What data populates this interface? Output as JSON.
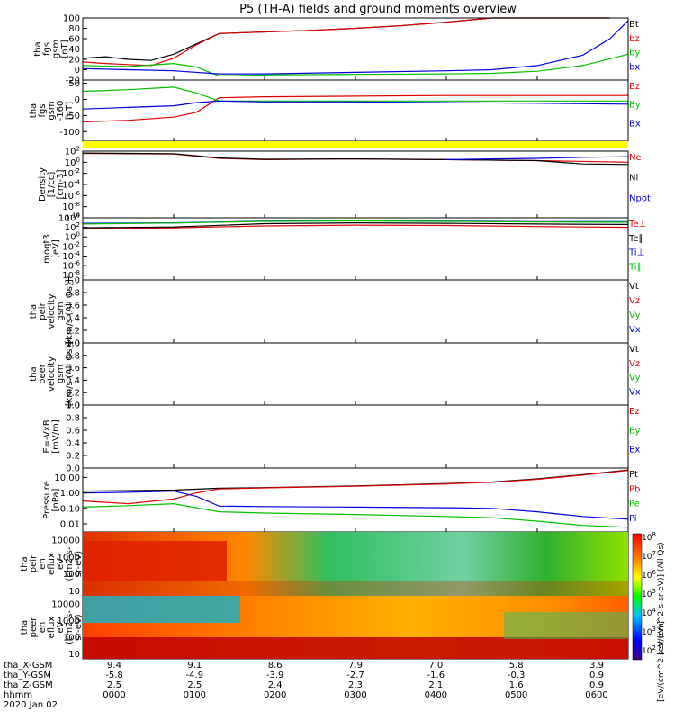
{
  "title": "P5 (TH-A) fields and ground moments overview",
  "colors": {
    "black": "#000000",
    "red": "#e00000",
    "green": "#00c000",
    "blue": "#0000e0",
    "yellow": "#ffff00"
  },
  "chart_data": [
    {
      "type": "line",
      "panel": "fgs",
      "ylabel": [
        "tha",
        "fgs",
        "gsm",
        "[nT]"
      ],
      "yticks": [
        "100",
        "80",
        "60",
        "40",
        "20",
        "0",
        "-20"
      ],
      "ylim": [
        -20,
        100
      ],
      "legend": [
        {
          "text": "Bt",
          "color": "#000000"
        },
        {
          "text": "bz",
          "color": "#e00000"
        },
        {
          "text": "by",
          "color": "#00c000"
        },
        {
          "text": "bx",
          "color": "#0000e0"
        }
      ],
      "series": [
        {
          "name": "Bt",
          "color": "#000000",
          "x": [
            0,
            0.25,
            0.5,
            0.75,
            1.0,
            1.25,
            1.5,
            2,
            2.5,
            3,
            3.5,
            4,
            4.5,
            5,
            5.5,
            5.8
          ],
          "y": [
            22,
            25,
            20,
            18,
            30,
            50,
            70,
            73,
            76,
            80,
            85,
            92,
            100,
            100,
            100,
            100
          ]
        },
        {
          "name": "bz",
          "color": "#e00000",
          "x": [
            0,
            0.25,
            0.5,
            0.75,
            1.0,
            1.25,
            1.5,
            2,
            2.5,
            3,
            3.5,
            4,
            4.5,
            5,
            5.5,
            5.8
          ],
          "y": [
            15,
            12,
            10,
            8,
            22,
            48,
            70,
            73,
            76,
            80,
            85,
            92,
            100,
            100,
            100,
            100
          ]
        },
        {
          "name": "by",
          "color": "#00c000",
          "x": [
            0,
            0.5,
            1.0,
            1.25,
            1.5,
            2,
            3,
            4,
            4.5,
            5,
            5.5,
            6
          ],
          "y": [
            8,
            6,
            12,
            5,
            -12,
            -10,
            -9,
            -8,
            -7,
            -3,
            8,
            30
          ]
        },
        {
          "name": "bx",
          "color": "#0000e0",
          "x": [
            0,
            0.5,
            1.0,
            1.5,
            2,
            3,
            4,
            4.5,
            5,
            5.5,
            5.8,
            6
          ],
          "y": [
            2,
            0,
            -2,
            -8,
            -8,
            -5,
            -2,
            0,
            8,
            28,
            60,
            95
          ]
        }
      ]
    },
    {
      "type": "line",
      "panel": "fgs-offset",
      "ylabel": [
        "tha",
        "fgs",
        "gsm",
        "-160",
        "[nT]"
      ],
      "yticks": [
        "50",
        "0",
        "-50",
        "-100"
      ],
      "ylim": [
        -130,
        60
      ],
      "legend": [
        {
          "text": "Bz",
          "color": "#e00000"
        },
        {
          "text": "By",
          "color": "#00c000"
        },
        {
          "text": "Bx",
          "color": "#0000e0"
        }
      ],
      "series": [
        {
          "name": "Bz",
          "color": "#e00000",
          "x": [
            0,
            0.5,
            1.0,
            1.25,
            1.5,
            2,
            3,
            4,
            5,
            6
          ],
          "y": [
            -70,
            -65,
            -55,
            -40,
            5,
            8,
            10,
            12,
            12,
            12
          ]
        },
        {
          "name": "By",
          "color": "#00c000",
          "x": [
            0,
            0.5,
            1.0,
            1.25,
            1.5,
            2,
            3,
            4,
            5,
            6
          ],
          "y": [
            25,
            30,
            38,
            20,
            -5,
            -5,
            -5,
            -5,
            -5,
            -5
          ]
        },
        {
          "name": "Bx",
          "color": "#0000e0",
          "x": [
            0,
            0.5,
            1.0,
            1.25,
            1.5,
            2,
            3,
            4,
            5,
            6
          ],
          "y": [
            -30,
            -25,
            -20,
            -10,
            -5,
            -8,
            -8,
            -10,
            -12,
            -15
          ]
        }
      ]
    },
    {
      "type": "line",
      "panel": "density",
      "ylabel": [
        "Density",
        "[1/cc]",
        "[cm-3]"
      ],
      "yticks": [
        "10^2",
        "10^0",
        "10^-2",
        "10^-4",
        "10^-6",
        "10^-8",
        "10^-10"
      ],
      "ylim": [
        1e-10,
        100
      ],
      "yscale": "log",
      "legend": [
        {
          "text": "Ne",
          "color": "#e00000"
        },
        {
          "text": "Ni",
          "color": "#000000"
        },
        {
          "text": "Npot",
          "color": "#0000e0"
        }
      ],
      "series": [
        {
          "name": "Ne",
          "color": "#e00000",
          "x": [
            0,
            1.0,
            1.5,
            2,
            3,
            4,
            5,
            6
          ],
          "y": [
            40,
            30,
            5,
            3,
            4,
            3,
            2,
            1
          ]
        },
        {
          "name": "Ni",
          "color": "#000000",
          "x": [
            0,
            1.0,
            1.5,
            2,
            3,
            4,
            5,
            5.5,
            6
          ],
          "y": [
            45,
            35,
            6,
            3.5,
            4,
            3,
            2,
            0.5,
            0.4
          ]
        },
        {
          "name": "Npot",
          "color": "#0000e0",
          "x": [
            4,
            4.5,
            5,
            5.5,
            6
          ],
          "y": [
            3,
            4,
            5,
            8,
            10
          ]
        }
      ]
    },
    {
      "type": "line",
      "panel": "temperature",
      "ylabel": [
        "moqt3",
        "[eV]"
      ],
      "yticks": [
        "10^4",
        "10^2",
        "10^0",
        "10^-2",
        "10^-4",
        "10^-6",
        "10^-8"
      ],
      "ylim": [
        1e-09,
        10000
      ],
      "yscale": "log",
      "legend": [
        {
          "text": "Te⊥",
          "color": "#e00000"
        },
        {
          "text": "Te∥",
          "color": "#000000"
        },
        {
          "text": "Ti⊥",
          "color": "#0000e0"
        },
        {
          "text": "Ti∥",
          "color": "#00c000"
        }
      ],
      "series": [
        {
          "name": "Te⊥",
          "color": "#e00000",
          "x": [
            0,
            1,
            2,
            3,
            4,
            5,
            6
          ],
          "y": [
            50,
            80,
            200,
            300,
            250,
            150,
            100
          ]
        },
        {
          "name": "Te∥",
          "color": "#000000",
          "x": [
            0,
            1,
            2,
            3,
            4,
            5,
            6
          ],
          "y": [
            80,
            120,
            600,
            900,
            700,
            500,
            400
          ]
        },
        {
          "name": "Ti⊥",
          "color": "#0000e0",
          "x": [
            0,
            1,
            2,
            3,
            4,
            5,
            6
          ],
          "y": [
            700,
            900,
            2000,
            2500,
            2000,
            1500,
            1500
          ]
        },
        {
          "name": "Ti∥",
          "color": "#00c000",
          "x": [
            0,
            1,
            2,
            3,
            4,
            5,
            6
          ],
          "y": [
            500,
            800,
            1800,
            2200,
            1800,
            1300,
            1200
          ]
        }
      ]
    },
    {
      "type": "line",
      "panel": "peir-velocity",
      "ylabel": [
        "tha",
        "peir",
        "velocity",
        "gsm",
        "[km/s (All Qs)]"
      ],
      "yticks": [
        "1.0",
        "0.8",
        "0.6",
        "0.4",
        "0.2",
        "0.0"
      ],
      "ylim": [
        0,
        1
      ],
      "legend": [
        {
          "text": "Vt",
          "color": "#000000"
        },
        {
          "text": "Vz",
          "color": "#e00000"
        },
        {
          "text": "Vy",
          "color": "#00c000"
        },
        {
          "text": "Vx",
          "color": "#0000e0"
        }
      ],
      "series": []
    },
    {
      "type": "line",
      "panel": "peer-velocity",
      "ylabel": [
        "tha",
        "peer",
        "velocity",
        "gsm",
        "[km/s (All Qs)]"
      ],
      "yticks": [
        "1.0",
        "0.8",
        "0.6",
        "0.4",
        "0.2",
        "0.0"
      ],
      "ylim": [
        0,
        1
      ],
      "legend": [
        {
          "text": "Vt",
          "color": "#000000"
        },
        {
          "text": "Vz",
          "color": "#e00000"
        },
        {
          "text": "Vy",
          "color": "#00c000"
        },
        {
          "text": "Vx",
          "color": "#0000e0"
        }
      ],
      "series": []
    },
    {
      "type": "line",
      "panel": "efield",
      "ylabel": [
        "E=-VxB",
        "[mV/m]"
      ],
      "yticks": [
        "1.0",
        "0.8",
        "0.6",
        "0.4",
        "0.2",
        "0.0"
      ],
      "ylim": [
        0,
        1
      ],
      "legend": [
        {
          "text": "Ez",
          "color": "#e00000"
        },
        {
          "text": "Ey",
          "color": "#00c000"
        },
        {
          "text": "Ex",
          "color": "#0000e0"
        }
      ],
      "series": []
    },
    {
      "type": "line",
      "panel": "pressure",
      "ylabel": [
        "Pressure",
        "[nPa]"
      ],
      "yticks": [
        "10.00",
        "1.00",
        "0.10",
        "0.01"
      ],
      "ylim": [
        0.003,
        40
      ],
      "yscale": "log",
      "legend": [
        {
          "text": "Pt",
          "color": "#000000"
        },
        {
          "text": "Pb",
          "color": "#e00000"
        },
        {
          "text": "Pe",
          "color": "#00c000"
        },
        {
          "text": "Pi",
          "color": "#0000e0"
        }
      ],
      "series": [
        {
          "name": "Pt",
          "color": "#000000",
          "x": [
            0,
            1,
            1.5,
            2,
            3,
            4,
            4.5,
            5,
            5.5,
            6
          ],
          "y": [
            1.3,
            1.5,
            2.0,
            2.2,
            2.8,
            4,
            5,
            8,
            15,
            30
          ]
        },
        {
          "name": "Pb",
          "color": "#e00000",
          "x": [
            0,
            0.5,
            1,
            1.25,
            1.5,
            2,
            3,
            4,
            4.5,
            5,
            5.5,
            6
          ],
          "y": [
            0.3,
            0.2,
            0.4,
            1.0,
            1.8,
            2.1,
            2.7,
            3.8,
            4.8,
            7.5,
            14,
            28
          ]
        },
        {
          "name": "Pe",
          "color": "#00c000",
          "x": [
            0,
            0.5,
            1,
            1.5,
            2,
            3,
            4,
            4.5,
            5,
            5.5,
            6
          ],
          "y": [
            0.12,
            0.15,
            0.2,
            0.06,
            0.05,
            0.04,
            0.03,
            0.025,
            0.015,
            0.008,
            0.006
          ]
        },
        {
          "name": "Pi",
          "color": "#0000e0",
          "x": [
            0,
            0.5,
            1,
            1.25,
            1.5,
            2,
            3,
            4,
            4.5,
            5,
            5.5,
            6
          ],
          "y": [
            1.0,
            1.1,
            1.3,
            0.6,
            0.14,
            0.13,
            0.12,
            0.11,
            0.1,
            0.06,
            0.03,
            0.02
          ]
        }
      ]
    },
    {
      "type": "heatmap",
      "panel": "peir-spectrogram",
      "ylabel": [
        "tha",
        "peir",
        "en",
        "eflux",
        "eV",
        "(cm2-s-",
        "sr-eV)"
      ],
      "yticks": [
        "10000",
        "1000",
        "100",
        "10"
      ],
      "ylim": [
        5,
        30000
      ],
      "yscale": "log"
    },
    {
      "type": "heatmap",
      "panel": "peer-spectrogram",
      "ylabel": [
        "tha",
        "peer",
        "en",
        "eflux",
        "eV",
        "(cm2-s-",
        "sr-eV)"
      ],
      "yticks": [
        "10000",
        "1000",
        "100",
        "10"
      ],
      "ylim": [
        5,
        30000
      ],
      "yscale": "log"
    }
  ],
  "colorbar": {
    "ticks": [
      "10^8",
      "10^7",
      "10^6",
      "10^5",
      "10^4",
      "10^3",
      "10^2"
    ],
    "label_top": "[eV/(cm^2-s-sr-eV)] (All Qs)",
    "label_bottom": "[eV/(cm^2-s-sr-eV)]"
  },
  "xaxis": {
    "row_labels": [
      "tha_X-GSM",
      "tha_Y-GSM",
      "tha_Z-GSM",
      "hhmm",
      "2020 Jan 02"
    ],
    "columns": [
      [
        "9.4",
        "-5.8",
        "2.5",
        "0000"
      ],
      [
        "9.1",
        "-4.9",
        "2.5",
        "0100"
      ],
      [
        "8.6",
        "-3.9",
        "2.4",
        "0200"
      ],
      [
        "7.9",
        "-2.7",
        "2.3",
        "0300"
      ],
      [
        "7.0",
        "-1.6",
        "2.1",
        "0400"
      ],
      [
        "5.8",
        "-0.3",
        "1.6",
        "0500"
      ],
      [
        "3.9",
        "0.9",
        "0.9",
        "0600"
      ]
    ]
  }
}
